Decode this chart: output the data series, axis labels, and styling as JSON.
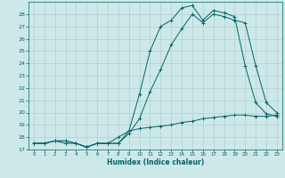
{
  "xlabel": "Humidex (Indice chaleur)",
  "ylabel": "",
  "bg_color": "#cde8e8",
  "grid_color": "#b0d0d0",
  "line_color": "#006666",
  "xlim": [
    -0.5,
    23.5
  ],
  "ylim": [
    17,
    29
  ],
  "yticks": [
    17,
    18,
    19,
    20,
    21,
    22,
    23,
    24,
    25,
    26,
    27,
    28
  ],
  "xticks": [
    0,
    1,
    2,
    3,
    4,
    5,
    6,
    7,
    8,
    9,
    10,
    11,
    12,
    13,
    14,
    15,
    16,
    17,
    18,
    19,
    20,
    21,
    22,
    23
  ],
  "line1_x": [
    0,
    1,
    2,
    3,
    4,
    5,
    6,
    7,
    8,
    9,
    10,
    11,
    12,
    13,
    14,
    15,
    16,
    17,
    18,
    19,
    20,
    21,
    22,
    23
  ],
  "line1_y": [
    17.5,
    17.5,
    17.7,
    17.7,
    17.5,
    17.2,
    17.5,
    17.5,
    17.5,
    18.5,
    21.5,
    25.0,
    27.0,
    27.5,
    28.5,
    28.7,
    27.5,
    28.3,
    28.1,
    27.8,
    23.8,
    20.8,
    19.9,
    19.7
  ],
  "line2_x": [
    0,
    1,
    2,
    3,
    4,
    5,
    6,
    7,
    8,
    9,
    10,
    11,
    12,
    13,
    14,
    15,
    16,
    17,
    18,
    19,
    20,
    21,
    22,
    23
  ],
  "line2_y": [
    17.5,
    17.5,
    17.7,
    17.7,
    17.5,
    17.2,
    17.5,
    17.5,
    17.5,
    18.3,
    19.5,
    21.7,
    23.5,
    25.5,
    26.8,
    28.0,
    27.3,
    28.0,
    27.8,
    27.5,
    27.3,
    23.8,
    20.8,
    20.0
  ],
  "line3_x": [
    0,
    1,
    2,
    3,
    4,
    5,
    6,
    7,
    8,
    9,
    10,
    11,
    12,
    13,
    14,
    15,
    16,
    17,
    18,
    19,
    20,
    21,
    22,
    23
  ],
  "line3_y": [
    17.5,
    17.5,
    17.7,
    17.5,
    17.5,
    17.2,
    17.5,
    17.5,
    18.0,
    18.5,
    18.7,
    18.8,
    18.9,
    19.0,
    19.2,
    19.3,
    19.5,
    19.6,
    19.7,
    19.8,
    19.8,
    19.7,
    19.7,
    19.8
  ]
}
